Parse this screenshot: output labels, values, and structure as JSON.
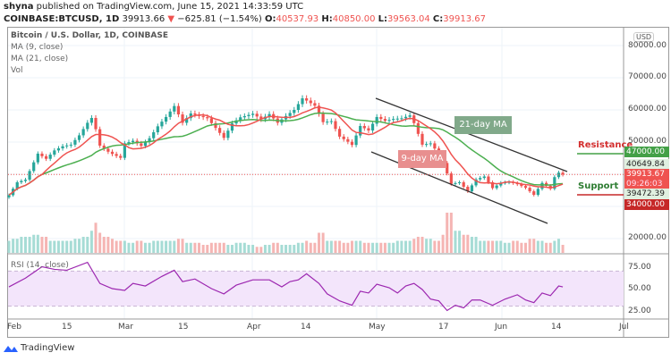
{
  "header": {
    "line1_user": "shyna",
    "line1_rest": "published on TradingView.com, June 15, 2021 14:33:59 UTC",
    "symbol": "COINBASE:BTCUSD, 1D",
    "last": "39913.66",
    "change": "−625.81 (−1.54%)",
    "o_label": "O:",
    "o": "40537.93",
    "h_label": "H:",
    "h": "40850.00",
    "l_label": "L:",
    "l": "39563.04",
    "c_label": "C:",
    "c": "39913.67"
  },
  "legend": {
    "title": "Bitcoin / U.S. Dollar, 1D, COINBASE",
    "ma9": "MA (9, close)",
    "ma21": "MA (21, close)",
    "vol": "Vol",
    "rsi": "RSI (14, close)"
  },
  "annotations": {
    "ma21": "21-day MA",
    "ma9": "9-day MA",
    "resistance": "Resistance",
    "support": "Support"
  },
  "price_axis": {
    "currency": "USD",
    "ticks": [
      "80000.00",
      "70000.00",
      "60000.00",
      "50000.00",
      "20000.00"
    ],
    "tags": {
      "resistance": "47000.00",
      "high": "40649.84",
      "last": "39913.67",
      "countdown": "09:26:03",
      "low": "39472.39",
      "support": "34000.00"
    }
  },
  "rsi_axis": {
    "ticks": [
      "75.00",
      "50.00",
      "25.00"
    ]
  },
  "x_axis": {
    "ticks": [
      "Feb",
      "15",
      "Mar",
      "15",
      "Apr",
      "14",
      "May",
      "17",
      "Jun",
      "14",
      "Jul"
    ]
  },
  "brand": "TradingView",
  "colors": {
    "up": "#26a69a",
    "down": "#ef5350",
    "ma9": "#ef5350",
    "ma21": "#4caf50",
    "rsi": "#9c27b0",
    "resistance": "#43a047",
    "support": "#c62828"
  },
  "chart_data": {
    "type": "candlestick",
    "ylim": [
      20000,
      82000
    ],
    "dates": [
      "2021-02-01",
      "2021-02-03",
      "2021-02-05",
      "2021-02-08",
      "2021-02-10",
      "2021-02-12",
      "2021-02-14",
      "2021-02-16",
      "2021-02-18",
      "2021-02-20",
      "2021-02-21",
      "2021-02-22",
      "2021-02-23",
      "2021-02-25",
      "2021-02-26",
      "2021-02-28",
      "2021-03-01",
      "2021-03-03",
      "2021-03-05",
      "2021-03-07",
      "2021-03-09",
      "2021-03-11",
      "2021-03-13",
      "2021-03-15",
      "2021-03-17",
      "2021-03-19",
      "2021-03-21",
      "2021-03-23",
      "2021-03-25",
      "2021-03-27",
      "2021-03-29",
      "2021-04-01",
      "2021-04-03",
      "2021-04-05",
      "2021-04-07",
      "2021-04-09",
      "2021-04-11",
      "2021-04-13",
      "2021-04-14",
      "2021-04-16",
      "2021-04-18",
      "2021-04-20",
      "2021-04-22",
      "2021-04-24",
      "2021-04-25",
      "2021-04-27",
      "2021-04-29",
      "2021-05-01",
      "2021-05-03",
      "2021-05-05",
      "2021-05-07",
      "2021-05-09",
      "2021-05-10",
      "2021-05-12",
      "2021-05-14",
      "2021-05-16",
      "2021-05-17",
      "2021-05-19",
      "2021-05-21",
      "2021-05-23",
      "2021-05-25",
      "2021-05-27",
      "2021-05-29",
      "2021-05-31",
      "2021-06-02",
      "2021-06-04",
      "2021-06-06",
      "2021-06-08",
      "2021-06-10",
      "2021-06-12",
      "2021-06-13",
      "2021-06-14",
      "2021-06-15"
    ],
    "close": [
      33500,
      37500,
      38300,
      46400,
      44800,
      47400,
      48700,
      49200,
      52100,
      56000,
      57500,
      54000,
      48900,
      47000,
      46300,
      45100,
      49600,
      50400,
      48800,
      51200,
      54900,
      57800,
      61200,
      56000,
      58900,
      58100,
      57400,
      54400,
      51300,
      55800,
      57700,
      58800,
      57100,
      58700,
      56000,
      58100,
      60000,
      63600,
      62900,
      61300,
      56200,
      56500,
      51700,
      50100,
      49100,
      55000,
      53600,
      57800,
      56600,
      57200,
      57400,
      58300,
      55900,
      49200,
      49600,
      46400,
      43500,
      37000,
      37500,
      34700,
      38400,
      39300,
      35700,
      37300,
      37600,
      36900,
      35800,
      33600,
      37300,
      35500,
      39100,
      40500,
      39900
    ],
    "volume_level": [
      0.3,
      0.35,
      0.4,
      0.45,
      0.4,
      0.3,
      0.3,
      0.3,
      0.35,
      0.4,
      0.55,
      0.75,
      0.5,
      0.4,
      0.35,
      0.3,
      0.3,
      0.25,
      0.3,
      0.25,
      0.3,
      0.3,
      0.3,
      0.35,
      0.25,
      0.25,
      0.2,
      0.25,
      0.25,
      0.2,
      0.25,
      0.2,
      0.15,
      0.2,
      0.25,
      0.2,
      0.2,
      0.25,
      0.3,
      0.25,
      0.5,
      0.3,
      0.3,
      0.25,
      0.3,
      0.3,
      0.25,
      0.25,
      0.25,
      0.25,
      0.3,
      0.3,
      0.35,
      0.4,
      0.35,
      0.3,
      0.45,
      1.0,
      0.55,
      0.45,
      0.4,
      0.3,
      0.3,
      0.3,
      0.25,
      0.3,
      0.25,
      0.35,
      0.3,
      0.25,
      0.3,
      0.35,
      0.2
    ],
    "rsi": {
      "ylim": [
        15,
        85
      ],
      "bands": [
        30,
        70
      ],
      "dates": [
        "2021-02-01",
        "2021-02-05",
        "2021-02-09",
        "2021-02-12",
        "2021-02-15",
        "2021-02-20",
        "2021-02-23",
        "2021-02-26",
        "2021-03-01",
        "2021-03-03",
        "2021-03-06",
        "2021-03-10",
        "2021-03-13",
        "2021-03-15",
        "2021-03-18",
        "2021-03-22",
        "2021-03-25",
        "2021-03-28",
        "2021-04-01",
        "2021-04-05",
        "2021-04-08",
        "2021-04-10",
        "2021-04-12",
        "2021-04-14",
        "2021-04-17",
        "2021-04-19",
        "2021-04-22",
        "2021-04-25",
        "2021-04-27",
        "2021-04-29",
        "2021-05-01",
        "2021-05-04",
        "2021-05-06",
        "2021-05-08",
        "2021-05-10",
        "2021-05-12",
        "2021-05-14",
        "2021-05-16",
        "2021-05-18",
        "2021-05-20",
        "2021-05-22",
        "2021-05-24",
        "2021-05-26",
        "2021-05-29",
        "2021-06-01",
        "2021-06-04",
        "2021-06-06",
        "2021-06-08",
        "2021-06-10",
        "2021-06-12",
        "2021-06-14",
        "2021-06-15"
      ],
      "values": [
        52,
        62,
        75,
        72,
        71,
        80,
        56,
        50,
        48,
        56,
        53,
        64,
        71,
        58,
        61,
        50,
        44,
        54,
        60,
        60,
        52,
        58,
        60,
        67,
        56,
        44,
        36,
        31,
        47,
        45,
        55,
        51,
        45,
        53,
        56,
        49,
        38,
        36,
        25,
        31,
        28,
        37,
        37,
        31,
        38,
        43,
        37,
        34,
        45,
        42,
        53,
        52
      ]
    }
  }
}
